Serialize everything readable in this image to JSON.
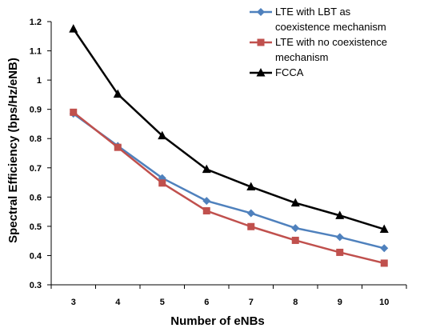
{
  "chart_data": {
    "type": "line",
    "title": "",
    "xlabel": "Number of eNBs",
    "ylabel": "Spectral Efficiency (bps/Hz/eNB)",
    "x": [
      3,
      4,
      5,
      6,
      7,
      8,
      9,
      10
    ],
    "ylim": [
      0.3,
      1.2
    ],
    "yticks": [
      "0.3",
      "0.4",
      "0.5",
      "0.6",
      "0.7",
      "0.8",
      "0.9",
      "1",
      "1.1",
      "1.2"
    ],
    "xticks": [
      "3",
      "4",
      "5",
      "6",
      "7",
      "8",
      "9",
      "10"
    ],
    "grid": false,
    "legend_position": "top-right",
    "series": [
      {
        "name": "LTE with LBT as coexistence mechanism",
        "legend_lines": [
          "LTE with LBT as",
          "coexistence mechanism"
        ],
        "color": "#4F81BD",
        "marker": "diamond",
        "values": [
          0.885,
          0.775,
          0.665,
          0.587,
          0.545,
          0.494,
          0.463,
          0.425
        ]
      },
      {
        "name": "LTE with no coexistence mechanism",
        "legend_lines": [
          "LTE with no coexistence",
          "mechanism"
        ],
        "color": "#C0504D",
        "marker": "square",
        "values": [
          0.89,
          0.77,
          0.648,
          0.553,
          0.499,
          0.452,
          0.411,
          0.374
        ]
      },
      {
        "name": "FCCA",
        "legend_lines": [
          "FCCA"
        ],
        "color": "#000000",
        "marker": "triangle",
        "values": [
          1.175,
          0.952,
          0.81,
          0.695,
          0.635,
          0.58,
          0.537,
          0.49
        ]
      }
    ]
  }
}
